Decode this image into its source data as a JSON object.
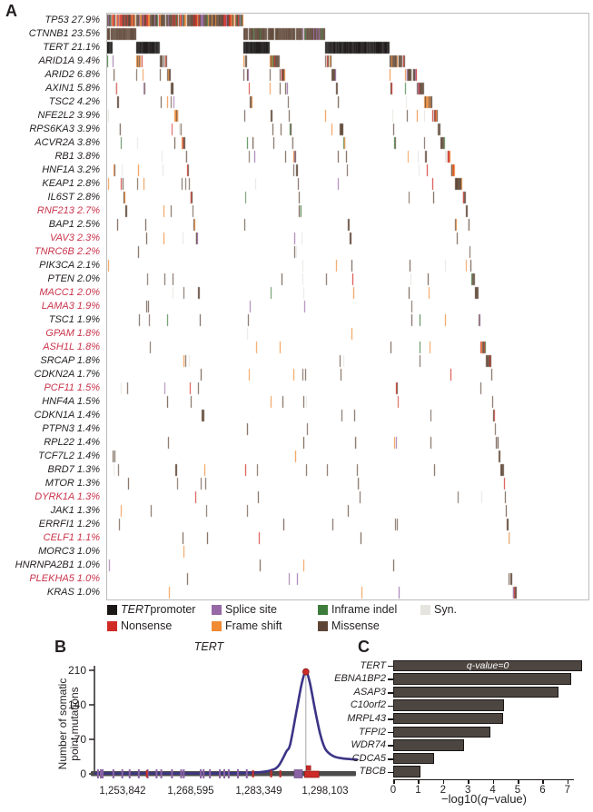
{
  "panel_a": {
    "label": "A",
    "colors": {
      "tert_promoter": "#1a1716",
      "nonsense": "#d02c25",
      "splice": "#9668a6",
      "frameshift": "#f08a33",
      "inframe": "#3e7c3c",
      "missense": "#5e4636",
      "syn": "#e6e4df"
    },
    "legend": [
      {
        "italic": "TERT",
        "text": " promoter",
        "color": "tert_promoter",
        "row": 0,
        "col": 0
      },
      {
        "italic": "",
        "text": "Splice site",
        "color": "splice",
        "row": 0,
        "col": 1
      },
      {
        "italic": "",
        "text": "Inframe indel",
        "color": "inframe",
        "row": 0,
        "col": 2
      },
      {
        "italic": "",
        "text": "Syn.",
        "color": "syn",
        "row": 0,
        "col": 3
      },
      {
        "italic": "",
        "text": "Nonsense",
        "color": "nonsense",
        "row": 1,
        "col": 0
      },
      {
        "italic": "",
        "text": "Frame shift",
        "color": "frameshift",
        "row": 1,
        "col": 1
      },
      {
        "italic": "",
        "text": "Missense",
        "color": "missense",
        "row": 1,
        "col": 2
      }
    ],
    "oncoprint": {
      "samples": 530,
      "seed": 1337,
      "default_types": [
        [
          "missense",
          0.5
        ],
        [
          "syn",
          0.17
        ],
        [
          "frameshift",
          0.13
        ],
        [
          "nonsense",
          0.1
        ],
        [
          "splice",
          0.06
        ],
        [
          "inframe",
          0.04
        ]
      ],
      "type_overrides": {
        "TP53": [
          [
            "missense",
            0.5
          ],
          [
            "nonsense",
            0.16
          ],
          [
            "frameshift",
            0.14
          ],
          [
            "splice",
            0.1
          ],
          [
            "syn",
            0.05
          ],
          [
            "inframe",
            0.05
          ]
        ],
        "CTNNB1": [
          [
            "missense",
            0.9
          ],
          [
            "inframe",
            0.04
          ],
          [
            "syn",
            0.04
          ],
          [
            "splice",
            0.02
          ]
        ],
        "TERT": [
          [
            "tert_promoter",
            1.0
          ]
        ]
      }
    }
  },
  "panel_b": {
    "label": "B",
    "title": "TERT",
    "ylabel_line1": "Number of somatic",
    "ylabel_line2": "point mutations",
    "colors": {
      "curve": "#3b3486",
      "baseline": "#4c4c4c",
      "purple_mark": "#8a63a5",
      "red_mark": "#cc2b27",
      "peak_line": "#9a9a9a"
    }
  },
  "panel_c": {
    "label": "C",
    "annotation": "q-value=0",
    "xlabel_pre": "−log10(",
    "xlabel_q": "q",
    "xlabel_post": "−value)",
    "bar_color": "#4c4540"
  },
  "chart_data": [
    {
      "type": "heatmap",
      "panel": "A",
      "subtype": "oncoprint-mutation-waterfall",
      "genes": [
        {
          "name": "TP53",
          "pct": 27.9,
          "highlighted": false
        },
        {
          "name": "CTNNB1",
          "pct": 23.5,
          "highlighted": false
        },
        {
          "name": "TERT",
          "pct": 21.1,
          "highlighted": false
        },
        {
          "name": "ARID1A",
          "pct": 9.4,
          "highlighted": false
        },
        {
          "name": "ARID2",
          "pct": 6.8,
          "highlighted": false
        },
        {
          "name": "AXIN1",
          "pct": 5.8,
          "highlighted": false
        },
        {
          "name": "TSC2",
          "pct": 4.2,
          "highlighted": false
        },
        {
          "name": "NFE2L2",
          "pct": 3.9,
          "highlighted": false
        },
        {
          "name": "RPS6KA3",
          "pct": 3.9,
          "highlighted": false
        },
        {
          "name": "ACVR2A",
          "pct": 3.8,
          "highlighted": false
        },
        {
          "name": "RB1",
          "pct": 3.8,
          "highlighted": false
        },
        {
          "name": "HNF1A",
          "pct": 3.2,
          "highlighted": false
        },
        {
          "name": "KEAP1",
          "pct": 2.8,
          "highlighted": false
        },
        {
          "name": "IL6ST",
          "pct": 2.8,
          "highlighted": false
        },
        {
          "name": "RNF213",
          "pct": 2.7,
          "highlighted": true
        },
        {
          "name": "BAP1",
          "pct": 2.5,
          "highlighted": false
        },
        {
          "name": "VAV3",
          "pct": 2.3,
          "highlighted": true
        },
        {
          "name": "TNRC6B",
          "pct": 2.2,
          "highlighted": true
        },
        {
          "name": "PIK3CA",
          "pct": 2.1,
          "highlighted": false
        },
        {
          "name": "PTEN",
          "pct": 2.0,
          "highlighted": false
        },
        {
          "name": "MACC1",
          "pct": 2.0,
          "highlighted": true
        },
        {
          "name": "LAMA3",
          "pct": 1.9,
          "highlighted": true
        },
        {
          "name": "TSC1",
          "pct": 1.9,
          "highlighted": false
        },
        {
          "name": "GPAM",
          "pct": 1.8,
          "highlighted": true
        },
        {
          "name": "ASH1L",
          "pct": 1.8,
          "highlighted": true
        },
        {
          "name": "SRCAP",
          "pct": 1.8,
          "highlighted": false
        },
        {
          "name": "CDKN2A",
          "pct": 1.7,
          "highlighted": false
        },
        {
          "name": "PCF11",
          "pct": 1.5,
          "highlighted": true
        },
        {
          "name": "HNF4A",
          "pct": 1.5,
          "highlighted": false
        },
        {
          "name": "CDKN1A",
          "pct": 1.4,
          "highlighted": false
        },
        {
          "name": "PTPN3",
          "pct": 1.4,
          "highlighted": false
        },
        {
          "name": "RPL22",
          "pct": 1.4,
          "highlighted": false
        },
        {
          "name": "TCF7L2",
          "pct": 1.4,
          "highlighted": false
        },
        {
          "name": "BRD7",
          "pct": 1.3,
          "highlighted": false
        },
        {
          "name": "MTOR",
          "pct": 1.3,
          "highlighted": false
        },
        {
          "name": "DYRK1A",
          "pct": 1.3,
          "highlighted": true
        },
        {
          "name": "JAK1",
          "pct": 1.3,
          "highlighted": false
        },
        {
          "name": "ERRFI1",
          "pct": 1.2,
          "highlighted": false
        },
        {
          "name": "CELF1",
          "pct": 1.1,
          "highlighted": true
        },
        {
          "name": "MORC3",
          "pct": 1.0,
          "highlighted": false
        },
        {
          "name": "HNRNPA2B1",
          "pct": 1.0,
          "highlighted": false
        },
        {
          "name": "PLEKHA5",
          "pct": 1.0,
          "highlighted": true
        },
        {
          "name": "KRAS",
          "pct": 1.0,
          "highlighted": false
        }
      ],
      "mutation_types": [
        "TERT promoter",
        "Nonsense",
        "Splice site",
        "Frame shift",
        "Inframe indel",
        "Missense",
        "Syn."
      ]
    },
    {
      "type": "line",
      "panel": "B",
      "title": "TERT",
      "ylabel": "Number of somatic point mutations",
      "yticks": [
        0,
        70,
        140,
        210
      ],
      "ylim": [
        0,
        210
      ],
      "xtick_labels": [
        "1,253,842",
        "1,268,595",
        "1,283,349",
        "1,298,103"
      ],
      "peak_value": 207,
      "peak_x_frac": 0.805,
      "curve_points_frac_value": [
        [
          0.0,
          1
        ],
        [
          0.2,
          1
        ],
        [
          0.42,
          1
        ],
        [
          0.55,
          1.5
        ],
        [
          0.62,
          3
        ],
        [
          0.67,
          7
        ],
        [
          0.7,
          16
        ],
        [
          0.73,
          45
        ],
        [
          0.745,
          60
        ],
        [
          0.77,
          130
        ],
        [
          0.79,
          185
        ],
        [
          0.805,
          207
        ],
        [
          0.82,
          185
        ],
        [
          0.84,
          130
        ],
        [
          0.86,
          80
        ],
        [
          0.88,
          50
        ],
        [
          0.91,
          36
        ],
        [
          0.95,
          31
        ],
        [
          1.0,
          29
        ]
      ],
      "purple_mark_fracs": [
        0.01,
        0.021,
        0.028,
        0.069,
        0.103,
        0.131,
        0.166,
        0.2,
        0.234,
        0.252,
        0.293,
        0.328,
        0.338,
        0.403,
        0.414,
        0.438,
        0.476,
        0.493,
        0.51,
        0.545,
        0.579
      ],
      "red_mark_fracs": [
        0.197,
        0.603,
        0.672,
        0.707
      ],
      "peak_cluster": {
        "purple_square_frac": 0.776,
        "red_rect_start_frac": 0.8,
        "red_rect_end_frac": 0.855,
        "red_small_frac": 0.815
      }
    },
    {
      "type": "bar",
      "panel": "C",
      "orientation": "horizontal",
      "categories": [
        "TERT",
        "EBNA1BP2",
        "ASAP3",
        "C10orf2",
        "MRPL43",
        "TFPI2",
        "WDR74",
        "CDCA5",
        "TBCB"
      ],
      "values": [
        7.6,
        7.15,
        6.65,
        4.45,
        4.4,
        3.9,
        2.85,
        1.65,
        1.1
      ],
      "xlabel": "-log10(q-value)",
      "xticks": [
        0,
        1,
        2,
        3,
        4,
        5,
        6,
        7
      ],
      "xlim": [
        0,
        7.3
      ],
      "annotation_first_bar": "q-value=0"
    }
  ]
}
